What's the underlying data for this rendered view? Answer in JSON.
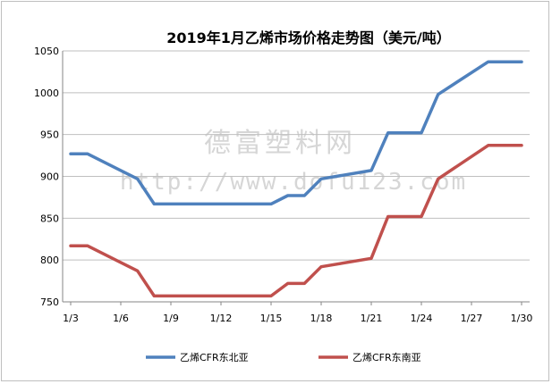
{
  "watermark": {
    "line1": "德富塑料网",
    "line2": "http://www.dofu123.com"
  },
  "chart_data": {
    "type": "line",
    "title": "2019年1月乙烯市场价格走势图（美元/吨）",
    "xlabel": "",
    "ylabel": "",
    "x": [
      3,
      4,
      7,
      8,
      9,
      10,
      11,
      12,
      13,
      14,
      15,
      16,
      17,
      18,
      21,
      22,
      23,
      24,
      25,
      28,
      29,
      30
    ],
    "xticks": [
      "1/3",
      "1/6",
      "1/9",
      "1/12",
      "1/15",
      "1/18",
      "1/21",
      "1/24",
      "1/27",
      "1/30"
    ],
    "xtick_values": [
      3,
      6,
      9,
      12,
      15,
      18,
      21,
      24,
      27,
      30
    ],
    "xlim": [
      3,
      30
    ],
    "ylim": [
      750,
      1050
    ],
    "yticks": [
      750,
      800,
      850,
      900,
      950,
      1000,
      1050
    ],
    "grid": true,
    "legend_position": "bottom",
    "series": [
      {
        "name": "乙烯CFR东北亚",
        "color": "#4f81bd",
        "values": [
          927,
          927,
          897,
          867,
          867,
          867,
          867,
          867,
          867,
          867,
          867,
          877,
          877,
          897,
          907,
          952,
          952,
          952,
          998,
          1037,
          1037,
          1037
        ]
      },
      {
        "name": "乙烯CFR东南亚",
        "color": "#c0504d",
        "values": [
          817,
          817,
          787,
          757,
          757,
          757,
          757,
          757,
          757,
          757,
          757,
          772,
          772,
          792,
          802,
          852,
          852,
          852,
          897,
          937,
          937,
          937
        ]
      }
    ]
  }
}
